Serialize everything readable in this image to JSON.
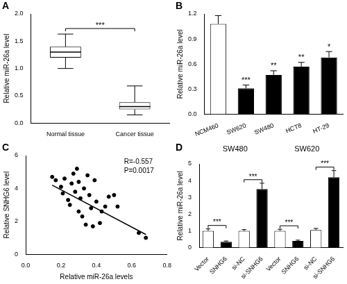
{
  "chart_data": [
    {
      "title": "A",
      "type": "box",
      "categories": [
        "Normal tissue",
        "Cancer tissue"
      ],
      "boxes": [
        {
          "min": 1.0,
          "q1": 1.2,
          "median": 1.3,
          "q3": 1.4,
          "max": 1.63
        },
        {
          "min": 0.15,
          "q1": 0.25,
          "median": 0.3,
          "q3": 0.38,
          "max": 0.68
        }
      ],
      "color": "#ffffff",
      "y_label": "Relative miR-26a level",
      "ylim": [
        0,
        2
      ],
      "yticks": [
        {
          "value": 0,
          "label": "0.0"
        },
        0.5,
        {
          "value": 1,
          "label": "1.0"
        },
        1.5,
        {
          "value": 2,
          "label": "2.0"
        }
      ],
      "grid": false,
      "annotations": [
        {
          "text": "***",
          "between": [
            "Normal tissue",
            "Cancer tissue"
          ]
        }
      ]
    },
    {
      "title": "B",
      "type": "bar",
      "categories": [
        "NCM460",
        "SW620",
        "SW480",
        "HCT8",
        "HT-29"
      ],
      "values": [
        1.08,
        0.31,
        0.47,
        0.57,
        0.68
      ],
      "errors": [
        0.1,
        0.04,
        0.05,
        0.05,
        0.07
      ],
      "colors": [
        "#ffffff",
        "#000000",
        "#000000",
        "#000000",
        "#000000"
      ],
      "significance": [
        null,
        "***",
        "**",
        "**",
        "*"
      ],
      "y_label": "Relative miR-26a level",
      "ylim": [
        0,
        1.2
      ],
      "yticks": [
        {
          "value": 0,
          "label": "0.0"
        },
        0.3,
        0.6,
        0.9,
        1.2
      ],
      "grid": false
    },
    {
      "title": "C",
      "type": "scatter",
      "series": [
        {
          "type": "scatter",
          "color": "#000000",
          "x": [
            0.15,
            0.17,
            0.2,
            0.21,
            0.22,
            0.24,
            0.25,
            0.26,
            0.27,
            0.28,
            0.29,
            0.3,
            0.3,
            0.31,
            0.32,
            0.33,
            0.34,
            0.35,
            0.36,
            0.37,
            0.38,
            0.39,
            0.4,
            0.42,
            0.43,
            0.45,
            0.47,
            0.5,
            0.52,
            0.64,
            0.68
          ],
          "values": [
            4.7,
            4.5,
            4.1,
            3.7,
            4.6,
            3.3,
            3.0,
            4.3,
            4.9,
            3.8,
            5.2,
            2.6,
            4.4,
            3.4,
            2.3,
            4.0,
            1.8,
            4.8,
            3.6,
            2.8,
            1.7,
            4.5,
            3.2,
            1.9,
            2.6,
            2.9,
            3.5,
            3.6,
            2.9,
            1.3,
            1.0
          ]
        },
        {
          "type": "line",
          "color": "#000000",
          "x": [
            0.15,
            0.68
          ],
          "values": [
            4.2,
            1.2
          ]
        }
      ],
      "annotations": [
        "R=-0.557",
        "P=0.0017"
      ],
      "x_label": "Relative miR-26a levels",
      "y_label": "Relative SNHG6 level",
      "xlim": [
        0,
        0.8
      ],
      "xticks": [
        {
          "value": 0,
          "label": "0.0"
        },
        0.2,
        0.4,
        0.6,
        0.8
      ],
      "ylim": [
        0,
        6
      ],
      "yticks": [
        0,
        2,
        4,
        6
      ],
      "grid": false
    },
    {
      "title": "D",
      "type": "bar",
      "groups": [
        {
          "name": "SW480",
          "categories": [
            "Vector",
            "SNHG6",
            "si-NC",
            "si-SNHG6"
          ],
          "values": [
            1.0,
            0.35,
            1.0,
            3.5
          ],
          "errors": [
            0.12,
            0.05,
            0.08,
            0.35
          ],
          "colors": [
            "#ffffff",
            "#000000",
            "#ffffff",
            "#000000"
          ]
        },
        {
          "name": "SW620",
          "categories": [
            "Vector",
            "SNHG6",
            "si-NC",
            "si-SNHG6"
          ],
          "values": [
            1.0,
            0.4,
            1.05,
            4.2
          ],
          "errors": [
            0.1,
            0.05,
            0.1,
            0.4
          ],
          "colors": [
            "#ffffff",
            "#000000",
            "#ffffff",
            "#000000"
          ]
        }
      ],
      "comparisons": [
        {
          "group": "SW480",
          "between": [
            "Vector",
            "SNHG6"
          ],
          "text": "***"
        },
        {
          "group": "SW480",
          "between": [
            "si-NC",
            "si-SNHG6"
          ],
          "text": "***"
        },
        {
          "group": "SW620",
          "between": [
            "Vector",
            "SNHG6"
          ],
          "text": "***"
        },
        {
          "group": "SW620",
          "between": [
            "si-NC",
            "si-SNHG6"
          ],
          "text": "***"
        }
      ],
      "y_label": "Relative miR-26a level",
      "ylim": [
        0,
        5
      ],
      "yticks": [
        0,
        1,
        2,
        3,
        4,
        5
      ],
      "grid": false
    }
  ]
}
